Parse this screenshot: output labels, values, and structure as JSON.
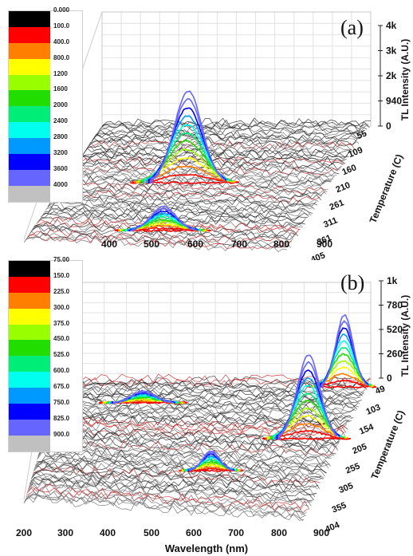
{
  "chart_data": [
    {
      "panel_label": "(a)",
      "type": "surface-3d",
      "xlabel": "",
      "x_ticks": [
        "400",
        "500",
        "600",
        "700",
        "800",
        "900"
      ],
      "ylabel": "Temperature (C)",
      "y_ticks": [
        "55",
        "109",
        "160",
        "210",
        "261",
        "311",
        "361",
        "405"
      ],
      "zlabel": "TL Intensity (A.U.)",
      "z_ticks": [
        "0",
        "940",
        "2k",
        "3k",
        "4k"
      ],
      "colorbar": [
        "0.000",
        "100.0",
        "400.0",
        "800.0",
        "1200",
        "1600",
        "2000",
        "2400",
        "2800",
        "3200",
        "3600",
        "4000"
      ],
      "peaks": [
        {
          "wavelength_nm": 625,
          "temperature_c": 55,
          "intensity": 3900
        },
        {
          "wavelength_nm": 550,
          "temperature_c": 370,
          "intensity": 1000
        }
      ]
    },
    {
      "panel_label": "(b)",
      "type": "surface-3d",
      "xlabel": "Wavelength (nm)",
      "x_ticks": [
        "200",
        "300",
        "400",
        "500",
        "600",
        "700",
        "800",
        "900"
      ],
      "ylabel": "Temperature (C)",
      "y_ticks": [
        "49",
        "103",
        "154",
        "205",
        "255",
        "305",
        "355",
        "404"
      ],
      "zlabel": "TL Intensity (A.U.)",
      "z_ticks": [
        "0",
        "260",
        "520",
        "780",
        "1k"
      ],
      "colorbar": [
        "75.00",
        "150.0",
        "225.0",
        "300.0",
        "375.0",
        "450.0",
        "525.0",
        "600.0",
        "675.0",
        "750.0",
        "825.0",
        "900.0"
      ],
      "peaks": [
        {
          "wavelength_nm": 780,
          "temperature_c": 50,
          "intensity": 930
        },
        {
          "wavelength_nm": 780,
          "temperature_c": 205,
          "intensity": 850
        },
        {
          "wavelength_nm": 700,
          "temperature_c": 300,
          "intensity": 350
        },
        {
          "wavelength_nm": 520,
          "temperature_c": 230,
          "intensity": 200
        }
      ]
    }
  ],
  "colorbar_colors": [
    "#000000",
    "#ff0000",
    "#ff7f00",
    "#ffff00",
    "#99ff00",
    "#22dd00",
    "#00ee77",
    "#00ffee",
    "#0099ff",
    "#0000ff",
    "#6666ff",
    "#c0c0c0"
  ]
}
